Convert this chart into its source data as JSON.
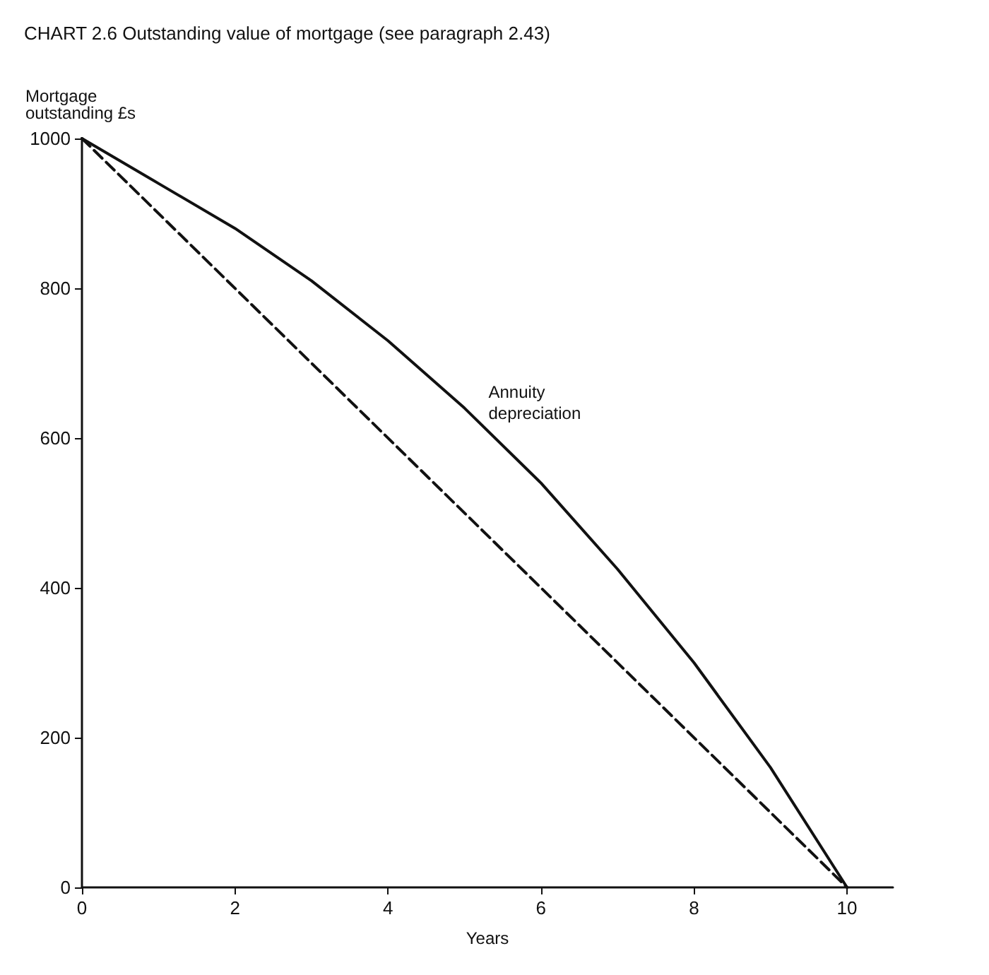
{
  "chart_data": {
    "type": "line",
    "title": "CHART 2.6 Outstanding value of mortgage (see paragraph 2.43)",
    "xlabel": "Years",
    "ylabel": "Mortgage\noutstanding £s",
    "x": [
      0,
      1,
      2,
      3,
      4,
      5,
      6,
      7,
      8,
      9,
      10
    ],
    "series": [
      {
        "name": "Annuity\ndepreciation",
        "color": "#111111",
        "line_style": "solid",
        "values": [
          1000,
          940,
          880,
          810,
          730,
          640,
          540,
          425,
          300,
          160,
          0
        ]
      },
      {
        "color": "#111111",
        "line_style": "dashed",
        "x": [
          0,
          10
        ],
        "values": [
          1000,
          0
        ]
      }
    ],
    "xlim": [
      0,
      10.6
    ],
    "ylim": [
      0,
      1000
    ],
    "xticks": [
      0,
      2,
      4,
      6,
      8,
      10
    ],
    "yticks": [
      0,
      200,
      400,
      600,
      800,
      1000
    ],
    "grid": false,
    "legend": false,
    "marker": "none"
  }
}
